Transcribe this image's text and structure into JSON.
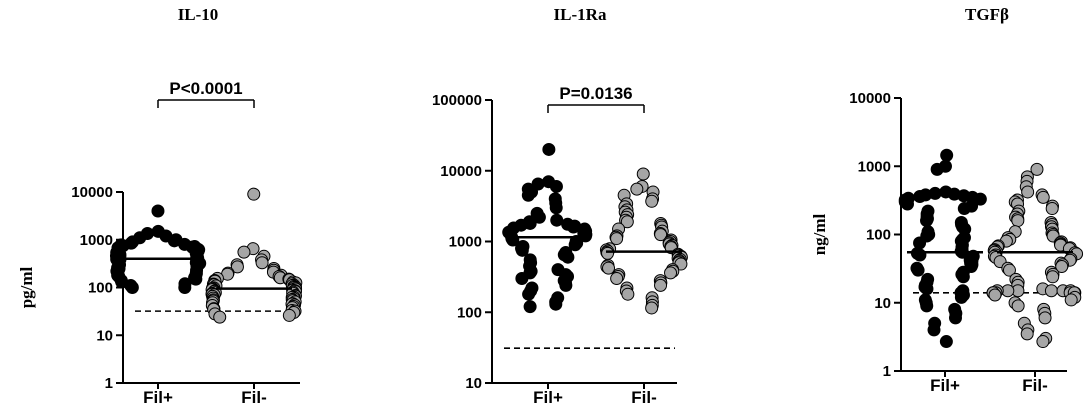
{
  "chart_data": [
    {
      "type": "scatter",
      "title": "IL-10",
      "ylabel": "pg/ml",
      "yscale": "log",
      "ylim": [
        1,
        10000
      ],
      "yticks": [
        "1",
        "10",
        "100",
        "1000",
        "10000"
      ],
      "categories": [
        "Fil+",
        "Fil-"
      ],
      "pvalue": "P<0.0001",
      "detection_limit": 32,
      "series": [
        {
          "fill": "#000000",
          "median": 400,
          "points": [
            4000,
            1500,
            1350,
            1200,
            1100,
            1000,
            950,
            900,
            850,
            800,
            780,
            750,
            720,
            700,
            680,
            650,
            620,
            600,
            580,
            560,
            540,
            520,
            500,
            480,
            460,
            450,
            440,
            430,
            420,
            410,
            400,
            395,
            390,
            385,
            380,
            375,
            370,
            365,
            360,
            355,
            350,
            340,
            330,
            320,
            310,
            300,
            290,
            280,
            270,
            260,
            250,
            240,
            230,
            220,
            210,
            200,
            190,
            180,
            170,
            160,
            150,
            140,
            130,
            120,
            110,
            100,
            100
          ]
        },
        {
          "fill": "#a6a6a6",
          "median": 95,
          "points": [
            9000,
            650,
            550,
            450,
            380,
            330,
            300,
            270,
            250,
            230,
            210,
            200,
            190,
            180,
            170,
            160,
            155,
            150,
            145,
            140,
            135,
            130,
            125,
            120,
            118,
            115,
            112,
            110,
            108,
            105,
            102,
            100,
            98,
            96,
            95,
            93,
            91,
            90,
            88,
            86,
            85,
            83,
            82,
            80,
            78,
            76,
            75,
            73,
            72,
            70,
            68,
            66,
            65,
            63,
            62,
            60,
            58,
            56,
            55,
            53,
            52,
            50,
            48,
            46,
            45,
            43,
            42,
            40,
            38,
            36,
            35,
            33,
            32,
            30,
            28,
            26,
            24
          ]
        }
      ]
    },
    {
      "type": "scatter",
      "title": "IL-1Ra",
      "ylabel": "",
      "yscale": "log",
      "ylim": [
        10,
        100000
      ],
      "yticks": [
        "10",
        "100",
        "1000",
        "10000",
        "100000"
      ],
      "categories": [
        "Fil+",
        "Fil-"
      ],
      "pvalue": "P=0.0136",
      "detection_limit": 31,
      "series": [
        {
          "fill": "#000000",
          "median": 1150,
          "points": [
            20000,
            7000,
            6500,
            6000,
            5500,
            5000,
            4500,
            4000,
            3500,
            3000,
            2500,
            2200,
            2000,
            1900,
            1800,
            1750,
            1700,
            1650,
            1600,
            1550,
            1500,
            1450,
            1400,
            1350,
            1300,
            1250,
            1200,
            1150,
            1100,
            1050,
            1000,
            950,
            900,
            850,
            800,
            750,
            700,
            650,
            600,
            550,
            500,
            450,
            400,
            380,
            360,
            340,
            320,
            300,
            280,
            260,
            240,
            220,
            200,
            180,
            160,
            140,
            130,
            120
          ]
        },
        {
          "fill": "#a6a6a6",
          "median": 720,
          "points": [
            9000,
            6000,
            5500,
            5000,
            4500,
            4000,
            3700,
            3400,
            3100,
            2800,
            2600,
            2400,
            2200,
            2000,
            1900,
            1800,
            1700,
            1600,
            1500,
            1400,
            1300,
            1250,
            1200,
            1150,
            1100,
            1050,
            1000,
            960,
            920,
            880,
            850,
            820,
            790,
            760,
            730,
            700,
            680,
            660,
            640,
            620,
            600,
            580,
            560,
            540,
            520,
            500,
            480,
            460,
            440,
            420,
            400,
            380,
            360,
            340,
            320,
            300,
            280,
            260,
            240,
            220,
            200,
            180,
            160,
            140,
            125,
            115
          ]
        }
      ]
    },
    {
      "type": "scatter",
      "title": "TGFβ",
      "ylabel": "ng/ml",
      "yscale": "log",
      "ylim": [
        1,
        10000
      ],
      "yticks": [
        "1",
        "10",
        "100",
        "1000",
        "10000"
      ],
      "categories": [
        "Fil+",
        "Fil-"
      ],
      "pvalue": "",
      "detection_limit": 14,
      "series": [
        {
          "fill": "#000000",
          "median": 55,
          "points": [
            1450,
            1000,
            900,
            420,
            400,
            390,
            380,
            370,
            360,
            350,
            340,
            330,
            320,
            300,
            280,
            260,
            240,
            220,
            200,
            180,
            170,
            160,
            150,
            140,
            130,
            120,
            110,
            100,
            95,
            90,
            85,
            80,
            75,
            70,
            65,
            60,
            57,
            55,
            53,
            50,
            48,
            46,
            44,
            42,
            40,
            38,
            36,
            34,
            32,
            30,
            28,
            26,
            24,
            22,
            20,
            18,
            17,
            16,
            15,
            14,
            13,
            12,
            11,
            10,
            9,
            8,
            7,
            6,
            5,
            4,
            2.7
          ]
        },
        {
          "fill": "#a6a6a6",
          "median": 55,
          "points": [
            900,
            700,
            600,
            500,
            420,
            380,
            350,
            320,
            300,
            280,
            260,
            240,
            220,
            200,
            180,
            170,
            160,
            150,
            140,
            130,
            120,
            110,
            105,
            100,
            95,
            90,
            85,
            80,
            78,
            75,
            72,
            70,
            68,
            66,
            64,
            62,
            60,
            58,
            56,
            55,
            54,
            52,
            50,
            48,
            46,
            44,
            42,
            40,
            38,
            36,
            34,
            32,
            30,
            28,
            26,
            24,
            22,
            20,
            18,
            16,
            15,
            15,
            15,
            15,
            15,
            15,
            14,
            14,
            14,
            14,
            14,
            14,
            13,
            12,
            11,
            10,
            9,
            8,
            7,
            6,
            5,
            4,
            3.5,
            3,
            2.7
          ]
        }
      ]
    }
  ]
}
